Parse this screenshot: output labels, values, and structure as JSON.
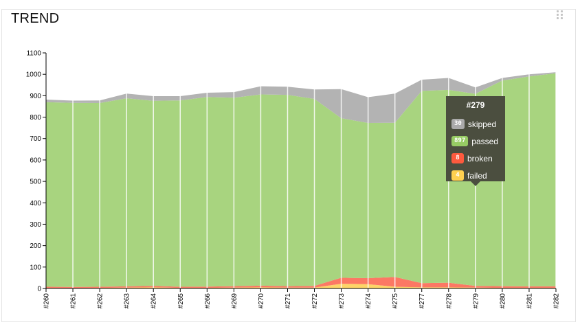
{
  "widget": {
    "title": "TREND"
  },
  "colors": {
    "skipped": "#b3b3b3",
    "passed": "#a8d47f",
    "broken": "#fc7864",
    "failed": "#fdd467",
    "tooltip_bg": "#4b4e3f",
    "badge_skipped": "#aaaaaa",
    "badge_passed": "#97cc64",
    "badge_broken": "#fd5a3e",
    "badge_failed": "#ffd050"
  },
  "chart_data": {
    "type": "area",
    "stacked": true,
    "x": [
      "#260",
      "#261",
      "#262",
      "#263",
      "#264",
      "#265",
      "#266",
      "#269",
      "#270",
      "#271",
      "#272",
      "#273",
      "#274",
      "#275",
      "#277",
      "#278",
      "#279",
      "#280",
      "#281",
      "#282"
    ],
    "ylim": [
      0,
      1100
    ],
    "yticks": [
      0,
      100,
      200,
      300,
      400,
      500,
      600,
      700,
      800,
      900,
      1000,
      1100
    ],
    "grid": "vertical lines at each build",
    "series": [
      {
        "name": "failed",
        "values": [
          3,
          2,
          3,
          4,
          5,
          3,
          3,
          4,
          5,
          4,
          4,
          22,
          20,
          8,
          5,
          5,
          4,
          3,
          3,
          3
        ]
      },
      {
        "name": "broken",
        "values": [
          5,
          5,
          5,
          6,
          7,
          5,
          6,
          7,
          8,
          7,
          8,
          28,
          28,
          46,
          20,
          22,
          8,
          8,
          7,
          7
        ]
      },
      {
        "name": "passed",
        "values": [
          862,
          860,
          858,
          878,
          864,
          870,
          885,
          880,
          893,
          893,
          873,
          745,
          725,
          720,
          898,
          900,
          897,
          960,
          980,
          995
        ]
      },
      {
        "name": "skipped",
        "values": [
          12,
          10,
          12,
          22,
          22,
          20,
          20,
          26,
          38,
          38,
          44,
          136,
          120,
          136,
          52,
          56,
          30,
          12,
          10,
          5
        ]
      }
    ]
  },
  "tooltip": {
    "title": "#279",
    "rows": [
      {
        "count": "30",
        "label": "skipped",
        "color": "#aaaaaa"
      },
      {
        "count": "897",
        "label": "passed",
        "color": "#97cc64"
      },
      {
        "count": "8",
        "label": "broken",
        "color": "#fd5a3e"
      },
      {
        "count": "4",
        "label": "failed",
        "color": "#ffd050"
      }
    ]
  }
}
